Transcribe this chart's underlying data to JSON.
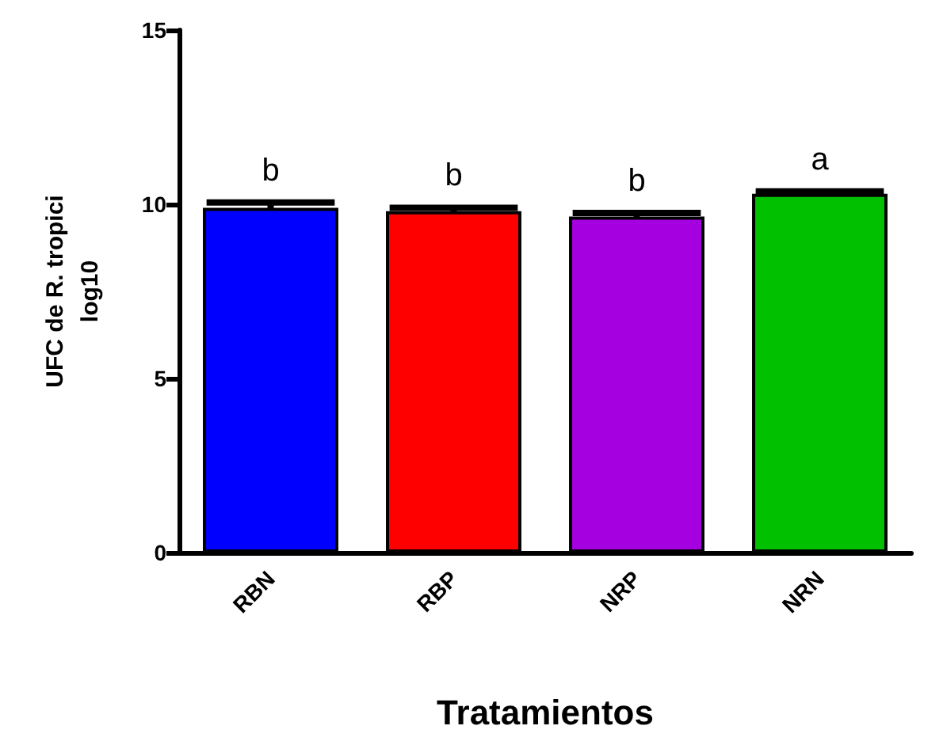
{
  "chart_data": {
    "type": "bar",
    "xlabel": "Tratamientos",
    "ylabel": "UFC de R. tropici\nlog10",
    "categories": [
      "RBN",
      "RBP",
      "NRP",
      "NRN"
    ],
    "values": [
      9.9,
      9.8,
      9.65,
      10.3
    ],
    "errors": [
      0.15,
      0.1,
      0.1,
      0.07
    ],
    "colors": [
      "#0000ff",
      "#ff0000",
      "#a500e0",
      "#00c000"
    ],
    "ylim": [
      0,
      15
    ],
    "yticks": [
      0,
      5,
      10,
      15
    ],
    "grid": false,
    "annotations": [
      "b",
      "b",
      "b",
      "a"
    ]
  }
}
